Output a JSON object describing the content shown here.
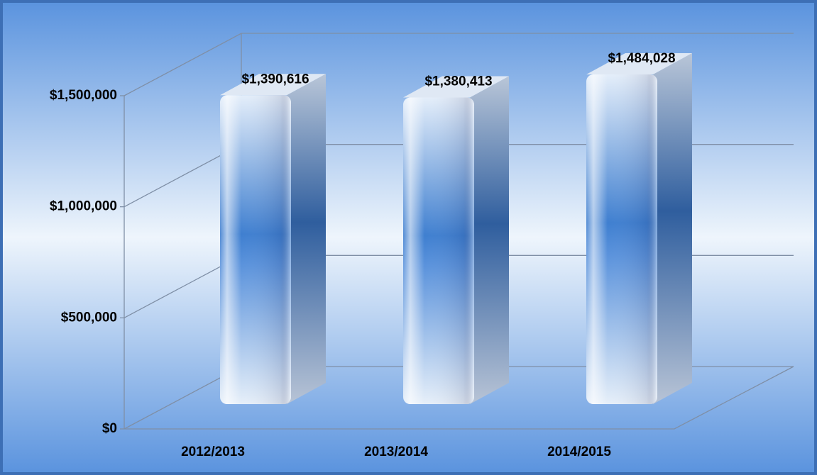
{
  "chart_data": {
    "type": "bar3d",
    "categories": [
      "2012/2013",
      "2013/2014",
      "2014/2015"
    ],
    "values": [
      1390616,
      1380413,
      1484028
    ],
    "value_labels": [
      "$1,390,616",
      "$1,380,413",
      "$1,484,028"
    ],
    "color": "#3f7fd0",
    "ylim": [
      0,
      1500000
    ],
    "yticks": [
      {
        "value": 0,
        "label": "$0"
      },
      {
        "value": 500000,
        "label": "$500,000"
      },
      {
        "value": 1000000,
        "label": "$1,000,000"
      },
      {
        "value": 1500000,
        "label": "$1,500,000"
      }
    ],
    "grid": true
  }
}
